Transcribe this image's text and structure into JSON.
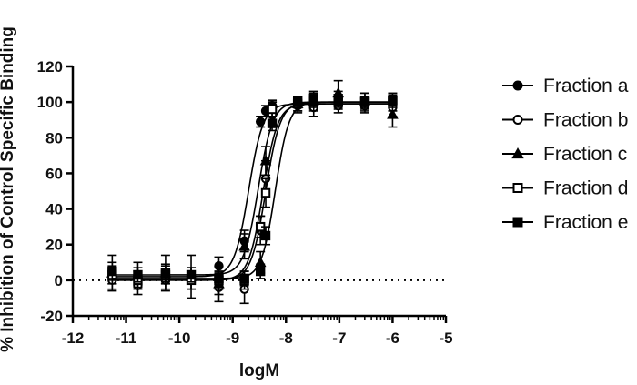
{
  "chart_data": {
    "type": "scatter",
    "title": "",
    "xlabel": "logM",
    "ylabel": "% Inhibition of Control Specific Binding",
    "xlim": [
      -12,
      -5
    ],
    "ylim": [
      -20,
      120
    ],
    "xticks": [
      -12,
      -11,
      -10,
      -9,
      -8,
      -7,
      -6,
      -5
    ],
    "yticks": [
      -20,
      0,
      20,
      40,
      60,
      80,
      100,
      120
    ],
    "x_minor_ticks_per_decade": 9,
    "reference_line": {
      "y": 0,
      "style": "dotted"
    },
    "legend_position": "right",
    "x": [
      -11.26,
      -10.78,
      -10.26,
      -9.78,
      -9.26,
      -8.78,
      -8.48,
      -8.38,
      -8.26,
      -7.78,
      -7.48,
      -7.02,
      -6.52,
      -6.0
    ],
    "series": [
      {
        "name": "Fraction a",
        "marker": "circle-filled",
        "fit": {
          "bottom": 2,
          "top": 99,
          "logEC50": -8.7,
          "hill": 3.2
        },
        "values": [
          2,
          1,
          2,
          3,
          8,
          22,
          89,
          95,
          98,
          100,
          99,
          99,
          99,
          98
        ],
        "errors": [
          4,
          4,
          4,
          4,
          5,
          6,
          3,
          3,
          3,
          3,
          3,
          3,
          3,
          3
        ]
      },
      {
        "name": "Fraction b",
        "marker": "circle-open",
        "fit": {
          "bottom": 0,
          "top": 99,
          "logEC50": -8.43,
          "hill": 3.2
        },
        "values": [
          0,
          -3,
          0,
          0,
          -4,
          -5,
          28,
          57,
          93,
          98,
          97,
          98,
          98,
          97
        ],
        "errors": [
          5,
          5,
          5,
          5,
          8,
          8,
          8,
          10,
          5,
          4,
          5,
          4,
          4,
          5
        ]
      },
      {
        "name": "Fraction c",
        "marker": "triangle-filled",
        "fit": {
          "bottom": 3,
          "top": 100,
          "logEC50": -8.52,
          "hill": 3.2
        },
        "values": [
          4,
          3,
          4,
          2,
          -2,
          19,
          10,
          67,
          96,
          99,
          100,
          105,
          100,
          93
        ],
        "errors": [
          10,
          7,
          10,
          12,
          6,
          7,
          6,
          8,
          4,
          4,
          5,
          7,
          5,
          7
        ]
      },
      {
        "name": "Fraction d",
        "marker": "square-open",
        "fit": {
          "bottom": 0,
          "top": 100,
          "logEC50": -8.38,
          "hill": 3.2
        },
        "values": [
          3,
          0,
          3,
          0,
          0,
          0,
          30,
          49,
          96,
          99,
          102,
          102,
          101,
          101
        ],
        "errors": [
          5,
          5,
          5,
          5,
          5,
          5,
          6,
          8,
          4,
          4,
          4,
          4,
          4,
          4
        ]
      },
      {
        "name": "Fraction e",
        "marker": "square-filled",
        "fit": {
          "bottom": 1,
          "top": 100,
          "logEC50": -8.2,
          "hill": 3.4
        },
        "values": [
          5,
          3,
          4,
          3,
          1,
          1,
          5,
          25,
          88,
          100,
          100,
          100,
          100,
          101
        ],
        "errors": [
          5,
          4,
          5,
          4,
          4,
          4,
          4,
          5,
          4,
          3,
          3,
          3,
          3,
          3
        ]
      }
    ]
  }
}
